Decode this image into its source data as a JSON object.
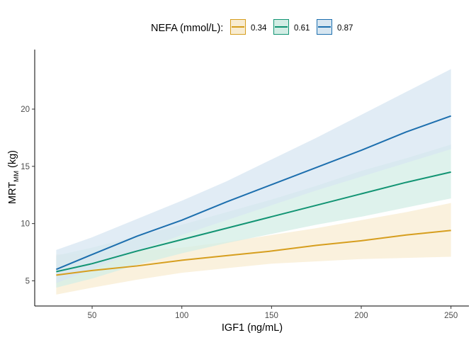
{
  "chart_data": {
    "type": "line",
    "xlabel": "IGF1 (ng/mL)",
    "ylabel": {
      "main": "MRT",
      "sub": "MM",
      "unit": " (kg)"
    },
    "xlim": [
      18,
      260
    ],
    "ylim": [
      2.8,
      25.2
    ],
    "xticks": [
      50,
      100,
      150,
      200,
      250
    ],
    "yticks": [
      5,
      10,
      15,
      20
    ],
    "grid": false,
    "legend": {
      "title": "NEFA (mmol/L):",
      "placement": "top",
      "entries": [
        "0.34",
        "0.61",
        "0.87"
      ]
    },
    "x": [
      30,
      50,
      75,
      100,
      125,
      150,
      175,
      200,
      225,
      250
    ],
    "series": [
      {
        "name": "0.34",
        "color": "#D69E1E",
        "fill": "#F8ECD2",
        "line": [
          5.5,
          5.9,
          6.3,
          6.8,
          7.2,
          7.6,
          8.1,
          8.5,
          9.0,
          9.4
        ],
        "lower": [
          3.8,
          4.4,
          5.1,
          5.7,
          6.1,
          6.5,
          6.7,
          6.9,
          7.0,
          7.1
        ],
        "upper": [
          7.3,
          7.4,
          7.6,
          7.9,
          8.4,
          9.0,
          9.6,
          10.3,
          11.0,
          11.8
        ]
      },
      {
        "name": "0.61",
        "color": "#129473",
        "fill": "#D3EDE5",
        "line": [
          5.8,
          6.5,
          7.6,
          8.6,
          9.6,
          10.6,
          11.6,
          12.6,
          13.6,
          14.5
        ],
        "lower": [
          4.4,
          5.2,
          6.4,
          7.4,
          8.3,
          9.1,
          9.9,
          10.6,
          11.4,
          12.2
        ],
        "upper": [
          7.2,
          7.9,
          8.9,
          9.9,
          11.0,
          12.1,
          13.3,
          14.6,
          15.7,
          16.9
        ]
      },
      {
        "name": "0.87",
        "color": "#1D6FAE",
        "fill": "#D7E6F1",
        "line": [
          6.0,
          7.3,
          8.9,
          10.3,
          11.9,
          13.4,
          14.9,
          16.4,
          18.0,
          19.4
        ],
        "lower": [
          4.8,
          6.0,
          7.6,
          9.0,
          10.3,
          11.6,
          12.9,
          14.1,
          15.3,
          16.5
        ],
        "upper": [
          7.7,
          8.8,
          10.4,
          12.0,
          13.7,
          15.6,
          17.5,
          19.5,
          21.5,
          23.5
        ]
      }
    ]
  }
}
